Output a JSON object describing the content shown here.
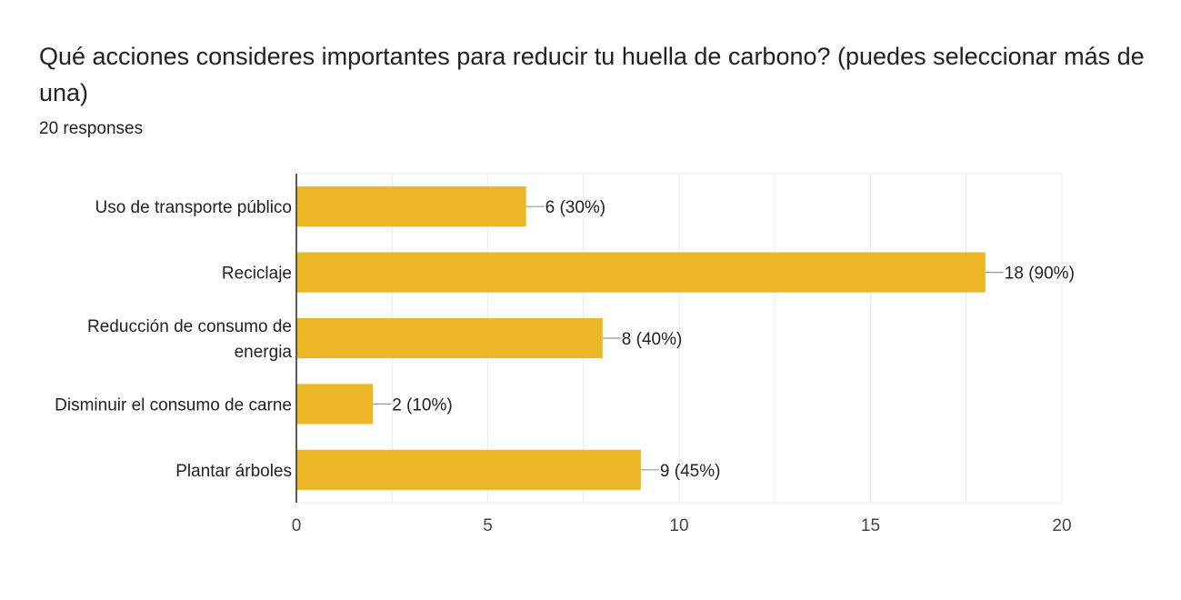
{
  "question": {
    "title": "Qué acciones consideres importantes para reducir tu huella de carbono? (puedes seleccionar más de una)",
    "response_count": "20 responses"
  },
  "colors": {
    "bar": "#ebb726",
    "gridline": "#eeeeee",
    "axis": "#333333",
    "leader": "#999999"
  },
  "chart_data": {
    "type": "bar",
    "orientation": "horizontal",
    "title": "",
    "xlabel": "",
    "ylabel": "",
    "categories": [
      [
        "Uso de transporte público"
      ],
      [
        "Reciclaje"
      ],
      [
        "Reducción de consumo de",
        "energia"
      ],
      [
        "Disminuir el consumo de carne"
      ],
      [
        "Plantar árboles"
      ]
    ],
    "values": [
      6,
      18,
      8,
      2,
      9
    ],
    "data_labels": [
      "6 (30%)",
      "18 (90%)",
      "8 (40%)",
      "2 (10%)",
      "9 (45%)"
    ],
    "xlim": [
      0,
      20
    ],
    "x_ticks": [
      0,
      5,
      10,
      15,
      20
    ],
    "grid": true,
    "legend": "none"
  }
}
